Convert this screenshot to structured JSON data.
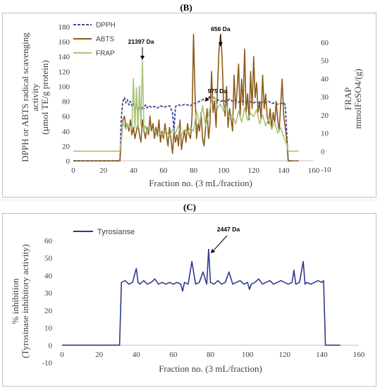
{
  "panels": {
    "b": {
      "label": "(B)"
    },
    "c": {
      "label": "(C)"
    }
  },
  "chart_data": [
    {
      "type": "line",
      "panel": "B",
      "xlabel": "Fraction no. (3 mL/fraction)",
      "ylabel_left": [
        "DPPH or ABTS radical scavenging",
        "activity",
        "(µmol TE/g protein)"
      ],
      "ylabel_right": [
        "FRAP",
        "mmolFeSO4/(g)"
      ],
      "xlim": [
        0,
        160
      ],
      "xticks": [
        0,
        20,
        40,
        60,
        80,
        100,
        120,
        140,
        160
      ],
      "ylim_left": [
        0,
        180
      ],
      "yticks_left": [
        0,
        20,
        40,
        60,
        80,
        100,
        120,
        140,
        160,
        180
      ],
      "ylim_right": [
        -10,
        60
      ],
      "yticks_right": [
        -10,
        0,
        10,
        20,
        30,
        40,
        50,
        60
      ],
      "legend": [
        "DPPH",
        "ABTS",
        "FRAP"
      ],
      "legend_position": "top-left",
      "series": [
        {
          "name": "DPPH",
          "axis": "left",
          "color": "#3a4a9e",
          "style": "dashed",
          "x": [
            0,
            31,
            32,
            33,
            34,
            35,
            36,
            37,
            38,
            39,
            40,
            41,
            42,
            43,
            44,
            45,
            46,
            47,
            48,
            49,
            50,
            52,
            54,
            56,
            58,
            60,
            62,
            64,
            66,
            67,
            68,
            69,
            70,
            72,
            74,
            76,
            78,
            80,
            82,
            84,
            86,
            88,
            90,
            92,
            94,
            96,
            98,
            100,
            102,
            104,
            106,
            108,
            110,
            112,
            114,
            116,
            118,
            120,
            122,
            124,
            126,
            128,
            130,
            132,
            134,
            136,
            138,
            140,
            141,
            142,
            143,
            145
          ],
          "values": [
            0,
            0,
            60,
            80,
            85,
            78,
            82,
            75,
            80,
            74,
            77,
            70,
            75,
            68,
            72,
            66,
            73,
            70,
            75,
            71,
            74,
            72,
            73,
            71,
            74,
            72,
            73,
            74,
            65,
            40,
            73,
            74,
            75,
            74,
            76,
            75,
            74,
            77,
            78,
            80,
            82,
            84,
            83,
            86,
            84,
            82,
            80,
            81,
            79,
            83,
            80,
            82,
            79,
            81,
            78,
            80,
            79,
            78,
            80,
            77,
            79,
            78,
            80,
            77,
            78,
            76,
            77,
            78,
            75,
            40,
            0,
            0
          ]
        },
        {
          "name": "ABTS",
          "axis": "left",
          "color": "#8b5a1b",
          "style": "solid",
          "x": [
            0,
            31,
            32,
            33,
            34,
            35,
            36,
            37,
            38,
            39,
            40,
            41,
            42,
            43,
            44,
            45,
            46,
            47,
            48,
            49,
            50,
            51,
            52,
            53,
            54,
            55,
            56,
            57,
            58,
            59,
            60,
            61,
            62,
            63,
            64,
            65,
            66,
            67,
            68,
            69,
            70,
            71,
            72,
            73,
            74,
            75,
            76,
            77,
            78,
            79,
            80,
            81,
            82,
            83,
            84,
            85,
            86,
            87,
            88,
            89,
            90,
            91,
            92,
            93,
            94,
            95,
            96,
            97,
            98,
            99,
            100,
            101,
            102,
            103,
            104,
            105,
            106,
            107,
            108,
            109,
            110,
            111,
            112,
            113,
            114,
            115,
            116,
            117,
            118,
            119,
            120,
            121,
            122,
            123,
            124,
            125,
            126,
            127,
            128,
            129,
            130,
            131,
            132,
            133,
            134,
            135,
            136,
            137,
            138,
            139,
            140,
            141,
            142,
            143,
            145,
            150
          ],
          "values": [
            0,
            0,
            30,
            55,
            60,
            45,
            50,
            40,
            55,
            35,
            45,
            30,
            40,
            50,
            35,
            25,
            55,
            40,
            30,
            45,
            35,
            60,
            40,
            50,
            30,
            45,
            35,
            55,
            25,
            40,
            30,
            50,
            35,
            20,
            45,
            30,
            10,
            40,
            25,
            35,
            20,
            55,
            15,
            30,
            40,
            25,
            50,
            35,
            30,
            60,
            170,
            90,
            30,
            50,
            40,
            65,
            30,
            20,
            45,
            70,
            30,
            50,
            120,
            65,
            80,
            45,
            100,
            150,
            170,
            140,
            80,
            60,
            100,
            45,
            70,
            55,
            40,
            115,
            70,
            95,
            130,
            60,
            110,
            75,
            150,
            65,
            90,
            55,
            120,
            70,
            140,
            85,
            105,
            65,
            80,
            55,
            115,
            70,
            90,
            60,
            50,
            70,
            45,
            65,
            50,
            80,
            55,
            40,
            75,
            110,
            60,
            45,
            30,
            0,
            0,
            0
          ]
        },
        {
          "name": "FRAP",
          "axis": "right",
          "color": "#a8c27a",
          "style": "solid",
          "x": [
            0,
            31,
            32,
            33,
            34,
            35,
            36,
            37,
            38,
            39,
            40,
            41,
            42,
            43,
            44,
            45,
            46,
            47,
            48,
            49,
            50,
            52,
            54,
            56,
            58,
            60,
            62,
            64,
            66,
            68,
            70,
            72,
            74,
            76,
            78,
            80,
            82,
            84,
            86,
            88,
            90,
            92,
            94,
            96,
            98,
            100,
            102,
            104,
            106,
            108,
            110,
            112,
            114,
            116,
            118,
            120,
            122,
            124,
            126,
            128,
            130,
            132,
            134,
            136,
            138,
            140,
            142,
            143,
            150
          ],
          "values": [
            0,
            0,
            6,
            16,
            14,
            12,
            15,
            13,
            14,
            12,
            40,
            13,
            35,
            12,
            36,
            14,
            50,
            12,
            14,
            10,
            13,
            11,
            12,
            8,
            10,
            9,
            11,
            8,
            12,
            10,
            14,
            9,
            12,
            10,
            13,
            11,
            22,
            15,
            25,
            14,
            20,
            28,
            30,
            24,
            26,
            22,
            25,
            18,
            20,
            15,
            22,
            16,
            24,
            17,
            21,
            19,
            23,
            15,
            20,
            14,
            18,
            12,
            16,
            10,
            13,
            8,
            4,
            0,
            0
          ]
        }
      ],
      "annotations": [
        {
          "text": "21397 Da",
          "x": 46,
          "y": 158,
          "arrow": true
        },
        {
          "text": "656 Da",
          "x": 98,
          "y": 172,
          "arrow": true
        },
        {
          "text": "975 Da",
          "x": 94,
          "y": 87,
          "arrow": true
        }
      ]
    },
    {
      "type": "line",
      "panel": "C",
      "xlabel": "Fraction no. (3 mL/fraction)",
      "ylabel": [
        "% inhibition",
        "(Tyrosinase inhibitory activity)"
      ],
      "xlim": [
        0,
        160
      ],
      "xticks": [
        0,
        20,
        40,
        60,
        80,
        100,
        120,
        140,
        160
      ],
      "ylim": [
        -10,
        60
      ],
      "yticks": [
        -10,
        0,
        10,
        20,
        30,
        40,
        50,
        60
      ],
      "legend": [
        "Tyrosianse"
      ],
      "legend_position": "top-left",
      "series": [
        {
          "name": "Tyrosianse",
          "color": "#2e3a8c",
          "style": "solid",
          "x": [
            0,
            31,
            32,
            34,
            36,
            38,
            40,
            41,
            42,
            44,
            46,
            48,
            50,
            52,
            54,
            56,
            58,
            60,
            62,
            64,
            65,
            66,
            68,
            70,
            72,
            74,
            76,
            78,
            79,
            80,
            82,
            84,
            86,
            88,
            90,
            92,
            94,
            96,
            98,
            100,
            101,
            102,
            104,
            106,
            108,
            110,
            112,
            114,
            116,
            118,
            120,
            122,
            124,
            125,
            126,
            128,
            130,
            131,
            132,
            134,
            136,
            138,
            140,
            141,
            142,
            145,
            150
          ],
          "values": [
            0,
            0,
            36,
            37,
            35,
            36,
            44,
            36,
            35,
            37,
            35,
            36,
            38,
            35,
            36,
            35,
            36,
            35,
            36,
            35,
            31,
            36,
            35,
            48,
            35,
            36,
            42,
            35,
            55,
            36,
            35,
            37,
            35,
            36,
            42,
            35,
            36,
            37,
            35,
            36,
            32,
            35,
            36,
            38,
            35,
            36,
            37,
            35,
            36,
            37,
            36,
            35,
            36,
            43,
            35,
            36,
            48,
            35,
            36,
            35,
            36,
            37,
            36,
            37,
            0,
            0,
            0
          ]
        }
      ],
      "annotations": [
        {
          "text": "2447 Da",
          "x": 79,
          "y": 56,
          "arrow": true
        }
      ]
    }
  ]
}
